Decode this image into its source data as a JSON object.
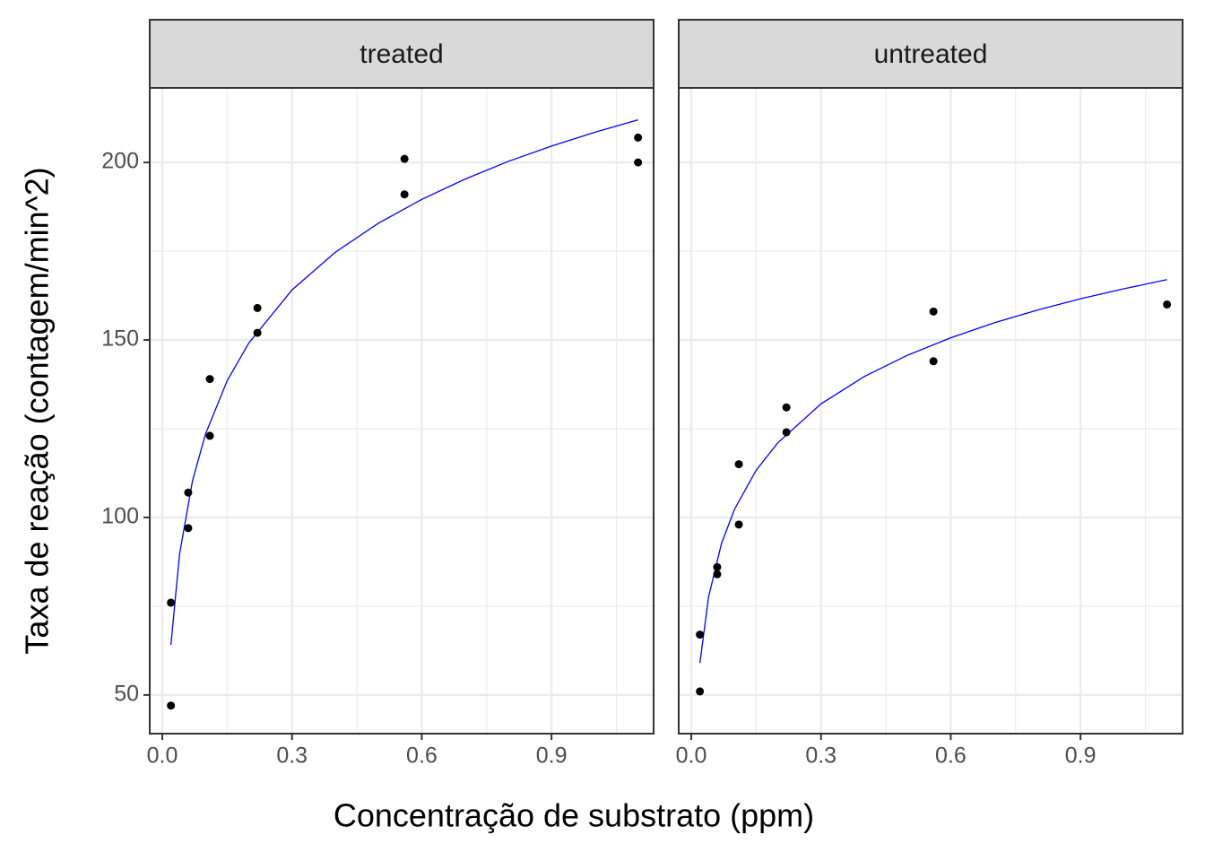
{
  "axes": {
    "xlabel": "Concentração de substrato (ppm)",
    "ylabel": "Taxa de reação (contagem/min^2)"
  },
  "chart_data": [
    {
      "type": "scatter",
      "title": "treated",
      "x": [
        0.02,
        0.02,
        0.06,
        0.06,
        0.11,
        0.11,
        0.22,
        0.22,
        0.56,
        0.56,
        1.1,
        1.1
      ],
      "values": [
        76,
        47,
        97,
        107,
        123,
        139,
        159,
        152,
        191,
        201,
        207,
        200
      ],
      "color": "#000000",
      "fit": {
        "color": "#0000ff",
        "x": [
          0.02,
          0.04,
          0.07,
          0.1,
          0.15,
          0.2,
          0.3,
          0.4,
          0.5,
          0.6,
          0.7,
          0.8,
          0.9,
          1.0,
          1.1
        ],
        "values": [
          64.1,
          89.7,
          110.4,
          123.5,
          138.5,
          149.1,
          164.1,
          174.7,
          182.9,
          189.6,
          195.3,
          200.3,
          204.6,
          208.5,
          212.0
        ]
      },
      "xlim": [
        -0.029,
        1.136
      ],
      "xticks": [
        {
          "value": 0,
          "label": "0.0"
        },
        0.3,
        0.6,
        0.9
      ],
      "x_minor_ticks": [
        0.15,
        0.45,
        0.75,
        1.05
      ],
      "ylim": [
        39.1,
        221
      ],
      "yticks": [
        50,
        100,
        150,
        200
      ],
      "y_minor_ticks": [
        75,
        125,
        175
      ],
      "grid": true,
      "show_yticks": true
    },
    {
      "type": "scatter",
      "title": "untreated",
      "x": [
        0.02,
        0.02,
        0.06,
        0.06,
        0.11,
        0.11,
        0.22,
        0.22,
        0.56,
        0.56,
        1.1
      ],
      "values": [
        67,
        51,
        84,
        86,
        98,
        115,
        131,
        124,
        144,
        158,
        160
      ],
      "color": "#000000",
      "fit": {
        "color": "#0000ff",
        "x": [
          0.02,
          0.04,
          0.07,
          0.1,
          0.15,
          0.2,
          0.3,
          0.4,
          0.5,
          0.6,
          0.7,
          0.8,
          0.9,
          1.0,
          1.1
        ],
        "values": [
          59.0,
          77.6,
          92.7,
          102.3,
          113.3,
          121.0,
          132.0,
          139.7,
          145.7,
          150.6,
          154.8,
          158.4,
          161.6,
          164.4,
          167.0
        ]
      },
      "xlim": [
        -0.029,
        1.136
      ],
      "xticks": [
        {
          "value": 0,
          "label": "0.0"
        },
        0.3,
        0.6,
        0.9
      ],
      "x_minor_ticks": [
        0.15,
        0.45,
        0.75,
        1.05
      ],
      "ylim": [
        39.1,
        221
      ],
      "yticks": [
        50,
        100,
        150,
        200
      ],
      "y_minor_ticks": [
        75,
        125,
        175
      ],
      "grid": true,
      "show_yticks": false
    }
  ]
}
